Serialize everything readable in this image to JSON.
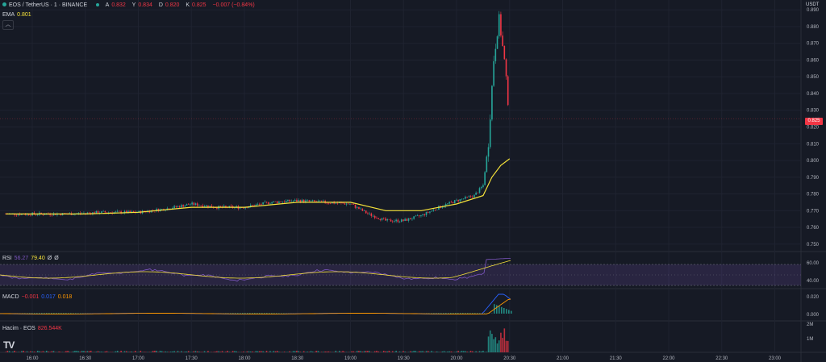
{
  "header": {
    "symbol": "EOS / TetherUS · 1 · BINANCE",
    "ohlc": [
      {
        "k": "A",
        "v": "0.832"
      },
      {
        "k": "Y",
        "v": "0.834"
      },
      {
        "k": "D",
        "v": "0.820"
      },
      {
        "k": "K",
        "v": "0.825"
      }
    ],
    "change": "−0.007 (−0.84%)",
    "currency": "USDT",
    "collapse_icon": "chevron-up-icon"
  },
  "ema_legend": {
    "label": "EMA",
    "value": "0.801"
  },
  "rsi_legend": {
    "label": "RSI",
    "v1": "56.27",
    "v2": "79.40",
    "v3": "Ø",
    "v4": "Ø"
  },
  "macd_legend": {
    "label": "MACD",
    "v1": "−0.001",
    "v2": "0.017",
    "v3": "0.018"
  },
  "volume_legend": {
    "label": "Hacim · EOS",
    "value": "826.544K"
  },
  "price_axis": [
    "0.890",
    "0.880",
    "0.870",
    "0.860",
    "0.850",
    "0.840",
    "0.830",
    "0.820",
    "0.810",
    "0.800",
    "0.790",
    "0.780",
    "0.770",
    "0.760",
    "0.750"
  ],
  "current_price": "0.825",
  "rsi_axis": [
    "60.00",
    "40.00"
  ],
  "macd_axis": [
    "0.020",
    "0.000"
  ],
  "volume_axis": [
    "2M",
    "1M"
  ],
  "time_axis": [
    "16:00",
    "16:30",
    "17:00",
    "17:30",
    "18:00",
    "18:30",
    "19:00",
    "19:30",
    "20:00",
    "20:30",
    "21:00",
    "21:30",
    "22:00",
    "22:30",
    "23:00"
  ],
  "colors": {
    "up": "#26a69a",
    "down": "#f23645",
    "ema": "#f5e23a",
    "rsi": "#7e57c2",
    "rsi_ma": "#f5e23a",
    "macd": "#2962ff",
    "signal": "#ff9800",
    "bg": "#161a25"
  },
  "logo": "TV",
  "chart_data": {
    "type": "candlestick",
    "timeframe": "1m",
    "price_range": [
      0.747,
      0.893
    ],
    "price_path": [
      [
        "15:45",
        0.768
      ],
      [
        "16:00",
        0.768
      ],
      [
        "16:20",
        0.768
      ],
      [
        "16:40",
        0.769
      ],
      [
        "17:00",
        0.769
      ],
      [
        "17:15",
        0.771
      ],
      [
        "17:30",
        0.774
      ],
      [
        "17:45",
        0.772
      ],
      [
        "18:00",
        0.772
      ],
      [
        "18:15",
        0.775
      ],
      [
        "18:30",
        0.776
      ],
      [
        "18:45",
        0.775
      ],
      [
        "19:00",
        0.774
      ],
      [
        "19:10",
        0.768
      ],
      [
        "19:20",
        0.764
      ],
      [
        "19:30",
        0.764
      ],
      [
        "19:40",
        0.767
      ],
      [
        "19:50",
        0.772
      ],
      [
        "20:00",
        0.776
      ],
      [
        "20:10",
        0.779
      ],
      [
        "20:15",
        0.785
      ],
      [
        "20:18",
        0.81
      ],
      [
        "20:21",
        0.86
      ],
      [
        "20:24",
        0.885
      ],
      [
        "20:27",
        0.86
      ],
      [
        "20:30",
        0.825
      ]
    ],
    "ema_path": [
      [
        "15:45",
        0.768
      ],
      [
        "16:30",
        0.768
      ],
      [
        "17:00",
        0.769
      ],
      [
        "17:30",
        0.772
      ],
      [
        "18:00",
        0.772
      ],
      [
        "18:30",
        0.775
      ],
      [
        "19:00",
        0.775
      ],
      [
        "19:20",
        0.77
      ],
      [
        "19:40",
        0.77
      ],
      [
        "20:00",
        0.774
      ],
      [
        "20:15",
        0.779
      ],
      [
        "20:20",
        0.79
      ],
      [
        "20:25",
        0.797
      ],
      [
        "20:30",
        0.801
      ]
    ],
    "rsi_bands": [
      30,
      70
    ],
    "volume_max": "2.4M"
  }
}
